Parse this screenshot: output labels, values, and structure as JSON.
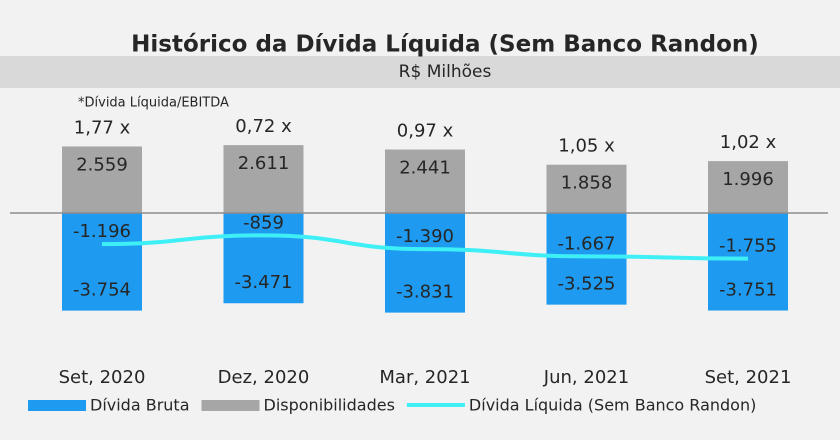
{
  "chart_data": {
    "type": "bar",
    "title": "Histórico da Dívida Líquida (Sem Banco Randon)",
    "subtitle": "R$ Milhões",
    "categories": [
      "Set, 2020",
      "Dez, 2020",
      "Mar, 2021",
      "Jun, 2021",
      "Set, 2021"
    ],
    "series": [
      {
        "name": "Dívida Bruta",
        "color": "#1e9bf0",
        "values": [
          -3754,
          -3471,
          -3831,
          -3525,
          -3751
        ],
        "value_labels": [
          "-3.754",
          "-3.471",
          "-3.831",
          "-3.525",
          "-3.751"
        ]
      },
      {
        "name": "Disponibilidades",
        "color": "#a6a6a6",
        "values": [
          2559,
          2611,
          2441,
          1858,
          1996
        ],
        "value_labels": [
          "2.559",
          "2.611",
          "2.441",
          "1.858",
          "1.996"
        ]
      },
      {
        "name": "Dívida Líquida (Sem Banco Randon)",
        "color": "#3ef0f5",
        "type": "line",
        "values": [
          -1196,
          -859,
          -1390,
          -1667,
          -1755
        ],
        "value_labels": [
          "-1.196",
          "-859",
          "-1.390",
          "-1.667",
          "-1.755"
        ]
      }
    ],
    "ratio": {
      "note": "*Dívida Líquida/EBITDA",
      "values": [
        1.77,
        0.72,
        0.97,
        1.05,
        1.02
      ],
      "value_labels": [
        "1,77 x",
        "0,72 x",
        "0,97 x",
        "1,05 x",
        "1,02 x"
      ]
    }
  }
}
